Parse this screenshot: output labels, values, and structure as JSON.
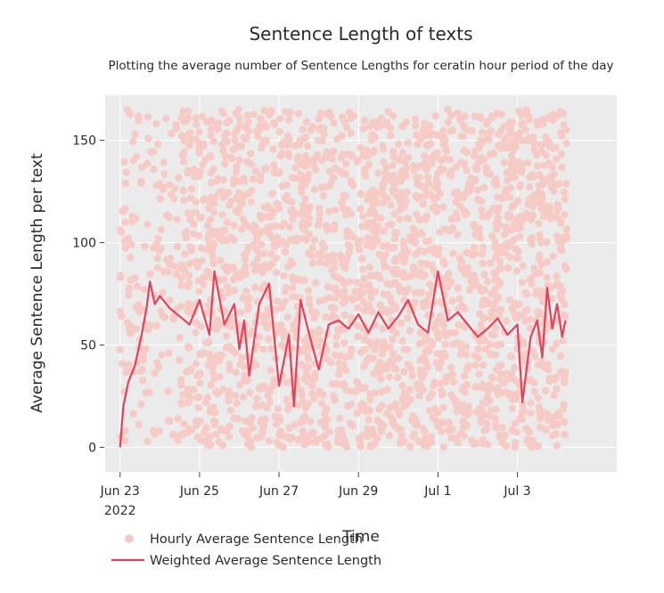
{
  "chart_data": {
    "type": "line",
    "title": "Sentence Length of texts",
    "subtitle": "Plotting the average number of Sentence Lengths for ceratin hour period of the day",
    "xlabel": "Time",
    "ylabel": "Average Sentence Length per text",
    "x_start": "2022-06-23",
    "x_end": "2022-07-04",
    "xlim": [
      "2022-06-22T15:00",
      "2022-07-05T12:00"
    ],
    "ylim": [
      -12,
      172
    ],
    "y_ticks": [
      0,
      50,
      100,
      150
    ],
    "x_ticks": [
      {
        "date": "2022-06-23",
        "label": "Jun 23",
        "sublabel": "2022"
      },
      {
        "date": "2022-06-25",
        "label": "Jun 25",
        "sublabel": ""
      },
      {
        "date": "2022-06-27",
        "label": "Jun 27",
        "sublabel": ""
      },
      {
        "date": "2022-06-29",
        "label": "Jun 29",
        "sublabel": ""
      },
      {
        "date": "2022-07-01",
        "label": "Jul 1",
        "sublabel": ""
      },
      {
        "date": "2022-07-03",
        "label": "Jul 3",
        "sublabel": ""
      }
    ],
    "grid": true,
    "background": "#ebebeb",
    "series": [
      {
        "name": "Hourly Average Sentence Length",
        "type": "scatter",
        "color": "#f7cbc5",
        "y_range": [
          0,
          165
        ]
      },
      {
        "name": "Weighted Average Sentence Length",
        "type": "line",
        "color": "#e0435b",
        "points": [
          [
            "2022-06-23T00:00",
            0
          ],
          [
            "2022-06-23T02:00",
            20
          ],
          [
            "2022-06-23T05:00",
            32
          ],
          [
            "2022-06-23T09:00",
            40
          ],
          [
            "2022-06-23T13:00",
            55
          ],
          [
            "2022-06-23T16:00",
            68
          ],
          [
            "2022-06-23T18:00",
            81
          ],
          [
            "2022-06-23T21:00",
            70
          ],
          [
            "2022-06-24T00:00",
            74
          ],
          [
            "2022-06-24T06:00",
            68
          ],
          [
            "2022-06-24T12:00",
            64
          ],
          [
            "2022-06-24T18:00",
            60
          ],
          [
            "2022-06-25T00:00",
            72
          ],
          [
            "2022-06-25T06:00",
            55
          ],
          [
            "2022-06-25T09:00",
            86
          ],
          [
            "2022-06-25T15:00",
            60
          ],
          [
            "2022-06-25T21:00",
            70
          ],
          [
            "2022-06-26T00:00",
            48
          ],
          [
            "2022-06-26T03:00",
            62
          ],
          [
            "2022-06-26T06:00",
            35
          ],
          [
            "2022-06-26T12:00",
            70
          ],
          [
            "2022-06-26T18:00",
            80
          ],
          [
            "2022-06-27T00:00",
            30
          ],
          [
            "2022-06-27T06:00",
            55
          ],
          [
            "2022-06-27T09:00",
            20
          ],
          [
            "2022-06-27T13:00",
            72
          ],
          [
            "2022-06-27T18:00",
            56
          ],
          [
            "2022-06-28T00:00",
            38
          ],
          [
            "2022-06-28T06:00",
            60
          ],
          [
            "2022-06-28T12:00",
            62
          ],
          [
            "2022-06-28T18:00",
            58
          ],
          [
            "2022-06-29T00:00",
            65
          ],
          [
            "2022-06-29T06:00",
            56
          ],
          [
            "2022-06-29T12:00",
            66
          ],
          [
            "2022-06-29T18:00",
            58
          ],
          [
            "2022-06-30T00:00",
            64
          ],
          [
            "2022-06-30T06:00",
            72
          ],
          [
            "2022-06-30T12:00",
            60
          ],
          [
            "2022-06-30T18:00",
            56
          ],
          [
            "2022-07-01T00:00",
            86
          ],
          [
            "2022-07-01T06:00",
            62
          ],
          [
            "2022-07-01T12:00",
            66
          ],
          [
            "2022-07-01T18:00",
            60
          ],
          [
            "2022-07-02T00:00",
            54
          ],
          [
            "2022-07-02T06:00",
            58
          ],
          [
            "2022-07-02T12:00",
            63
          ],
          [
            "2022-07-02T18:00",
            55
          ],
          [
            "2022-07-03T00:00",
            60
          ],
          [
            "2022-07-03T03:00",
            22
          ],
          [
            "2022-07-03T08:00",
            54
          ],
          [
            "2022-07-03T12:00",
            62
          ],
          [
            "2022-07-03T15:00",
            44
          ],
          [
            "2022-07-03T18:00",
            78
          ],
          [
            "2022-07-03T21:00",
            58
          ],
          [
            "2022-07-04T00:00",
            70
          ],
          [
            "2022-07-04T03:00",
            54
          ],
          [
            "2022-07-04T05:00",
            62
          ]
        ]
      }
    ]
  }
}
